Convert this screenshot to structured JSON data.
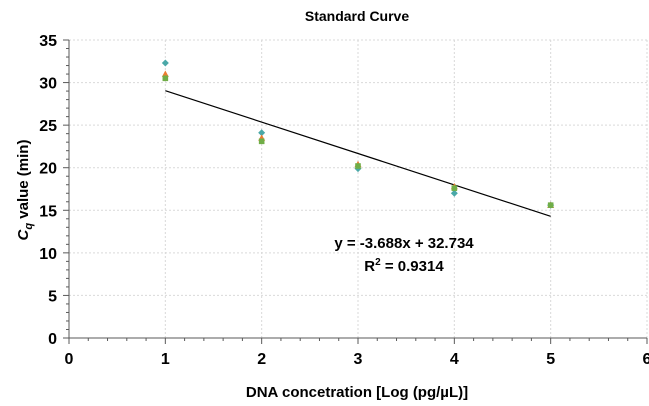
{
  "chart_data": {
    "type": "scatter",
    "title": "Standard Curve",
    "xlabel": "DNA concetration [Log (pg/µL)]",
    "ylabel_main": "C",
    "ylabel_sub": "q",
    "ylabel_rest": " value (min)",
    "xlim": [
      0,
      6
    ],
    "ylim": [
      0,
      35
    ],
    "x_ticks": [
      "0",
      "1",
      "2",
      "3",
      "4",
      "5",
      "6"
    ],
    "y_ticks": [
      "0",
      "5",
      "10",
      "15",
      "20",
      "25",
      "30",
      "35"
    ],
    "grid": true,
    "series": [
      {
        "color": "#4aa8a8",
        "marker": "diamond",
        "x": [
          1,
          2,
          3,
          4,
          5
        ],
        "y": [
          32.3,
          24.1,
          19.9,
          17.0,
          15.6
        ]
      },
      {
        "color": "#ed7d31",
        "marker": "triangle",
        "x": [
          1,
          2,
          3,
          4,
          5
        ],
        "y": [
          31.0,
          23.5,
          20.4,
          17.8,
          15.6
        ]
      },
      {
        "color": "#70ad47",
        "marker": "square",
        "x": [
          1,
          2,
          3,
          4,
          5
        ],
        "y": [
          30.5,
          23.1,
          20.2,
          17.6,
          15.6
        ]
      }
    ],
    "trendline": {
      "slope": -3.688,
      "intercept": 32.734,
      "x_range": [
        1,
        5
      ],
      "color": "#000000"
    },
    "annotations": {
      "equation": "y = -3.688x + 32.734",
      "r2_prefix": "R",
      "r2_sup": "2",
      "r2_value": " = 0.9314"
    }
  }
}
